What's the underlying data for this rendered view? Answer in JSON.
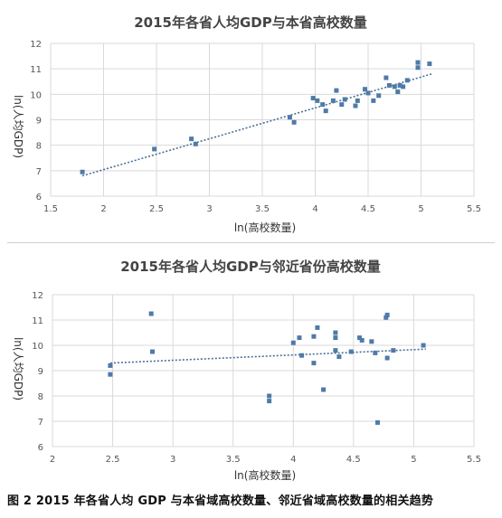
{
  "figure": {
    "caption": "图 2   2015 年各省人均 GDP 与本省域高校数量、邻近省域高校数量的相关趋势"
  },
  "chart_data": [
    {
      "type": "scatter",
      "title": "2015年各省人均GDP与本省高校数量",
      "xlabel": "ln(高校数量)",
      "ylabel": "ln(人均GDP)",
      "xlim": [
        1.5,
        5.5
      ],
      "ylim": [
        6,
        12
      ],
      "xticks": [
        1.5,
        2,
        2.5,
        3,
        3.5,
        4,
        4.5,
        5,
        5.5
      ],
      "yticks": [
        6,
        7,
        8,
        9,
        10,
        11,
        12
      ],
      "grid": true,
      "trendline": {
        "x": [
          1.8,
          5.1
        ],
        "y": [
          6.8,
          10.8
        ]
      },
      "points": [
        {
          "x": 1.8,
          "y": 6.95
        },
        {
          "x": 2.48,
          "y": 7.85
        },
        {
          "x": 2.83,
          "y": 8.25
        },
        {
          "x": 2.87,
          "y": 8.05
        },
        {
          "x": 3.76,
          "y": 9.1
        },
        {
          "x": 3.8,
          "y": 8.9
        },
        {
          "x": 3.98,
          "y": 9.85
        },
        {
          "x": 4.02,
          "y": 9.75
        },
        {
          "x": 4.07,
          "y": 9.6
        },
        {
          "x": 4.1,
          "y": 9.35
        },
        {
          "x": 4.17,
          "y": 9.75
        },
        {
          "x": 4.2,
          "y": 10.15
        },
        {
          "x": 4.25,
          "y": 9.6
        },
        {
          "x": 4.28,
          "y": 9.8
        },
        {
          "x": 4.38,
          "y": 9.55
        },
        {
          "x": 4.4,
          "y": 9.75
        },
        {
          "x": 4.47,
          "y": 10.2
        },
        {
          "x": 4.5,
          "y": 10.05
        },
        {
          "x": 4.55,
          "y": 9.75
        },
        {
          "x": 4.6,
          "y": 9.95
        },
        {
          "x": 4.67,
          "y": 10.65
        },
        {
          "x": 4.7,
          "y": 10.35
        },
        {
          "x": 4.75,
          "y": 10.3
        },
        {
          "x": 4.78,
          "y": 10.1
        },
        {
          "x": 4.8,
          "y": 10.35
        },
        {
          "x": 4.83,
          "y": 10.3
        },
        {
          "x": 4.87,
          "y": 10.55
        },
        {
          "x": 4.97,
          "y": 11.05
        },
        {
          "x": 4.97,
          "y": 11.25
        },
        {
          "x": 5.08,
          "y": 11.2
        }
      ]
    },
    {
      "type": "scatter",
      "title": "2015年各省人均GDP与邻近省份高校数量",
      "xlabel": "ln(高校数量)",
      "ylabel": "ln(人均GDP)",
      "xlim": [
        2,
        5.5
      ],
      "ylim": [
        6,
        12
      ],
      "xticks": [
        2,
        2.5,
        3,
        3.5,
        4,
        4.5,
        5,
        5.5
      ],
      "yticks": [
        6,
        7,
        8,
        9,
        10,
        11,
        12
      ],
      "grid": true,
      "trendline": {
        "x": [
          2.48,
          5.1
        ],
        "y": [
          9.3,
          9.85
        ]
      },
      "points": [
        {
          "x": 2.48,
          "y": 9.2
        },
        {
          "x": 2.48,
          "y": 8.85
        },
        {
          "x": 2.82,
          "y": 11.25
        },
        {
          "x": 2.83,
          "y": 9.75
        },
        {
          "x": 3.8,
          "y": 8.0
        },
        {
          "x": 3.8,
          "y": 7.8
        },
        {
          "x": 4.0,
          "y": 10.1
        },
        {
          "x": 4.05,
          "y": 10.3
        },
        {
          "x": 4.07,
          "y": 9.6
        },
        {
          "x": 4.17,
          "y": 10.35
        },
        {
          "x": 4.17,
          "y": 9.3
        },
        {
          "x": 4.2,
          "y": 10.7
        },
        {
          "x": 4.25,
          "y": 8.25
        },
        {
          "x": 4.35,
          "y": 10.5
        },
        {
          "x": 4.35,
          "y": 10.3
        },
        {
          "x": 4.35,
          "y": 9.8
        },
        {
          "x": 4.38,
          "y": 9.55
        },
        {
          "x": 4.48,
          "y": 9.75
        },
        {
          "x": 4.55,
          "y": 10.3
        },
        {
          "x": 4.57,
          "y": 10.2
        },
        {
          "x": 4.65,
          "y": 10.15
        },
        {
          "x": 4.68,
          "y": 9.7
        },
        {
          "x": 4.7,
          "y": 6.95
        },
        {
          "x": 4.77,
          "y": 11.1
        },
        {
          "x": 4.78,
          "y": 11.2
        },
        {
          "x": 4.78,
          "y": 9.5
        },
        {
          "x": 4.83,
          "y": 9.8
        },
        {
          "x": 5.08,
          "y": 10.0
        }
      ]
    }
  ]
}
